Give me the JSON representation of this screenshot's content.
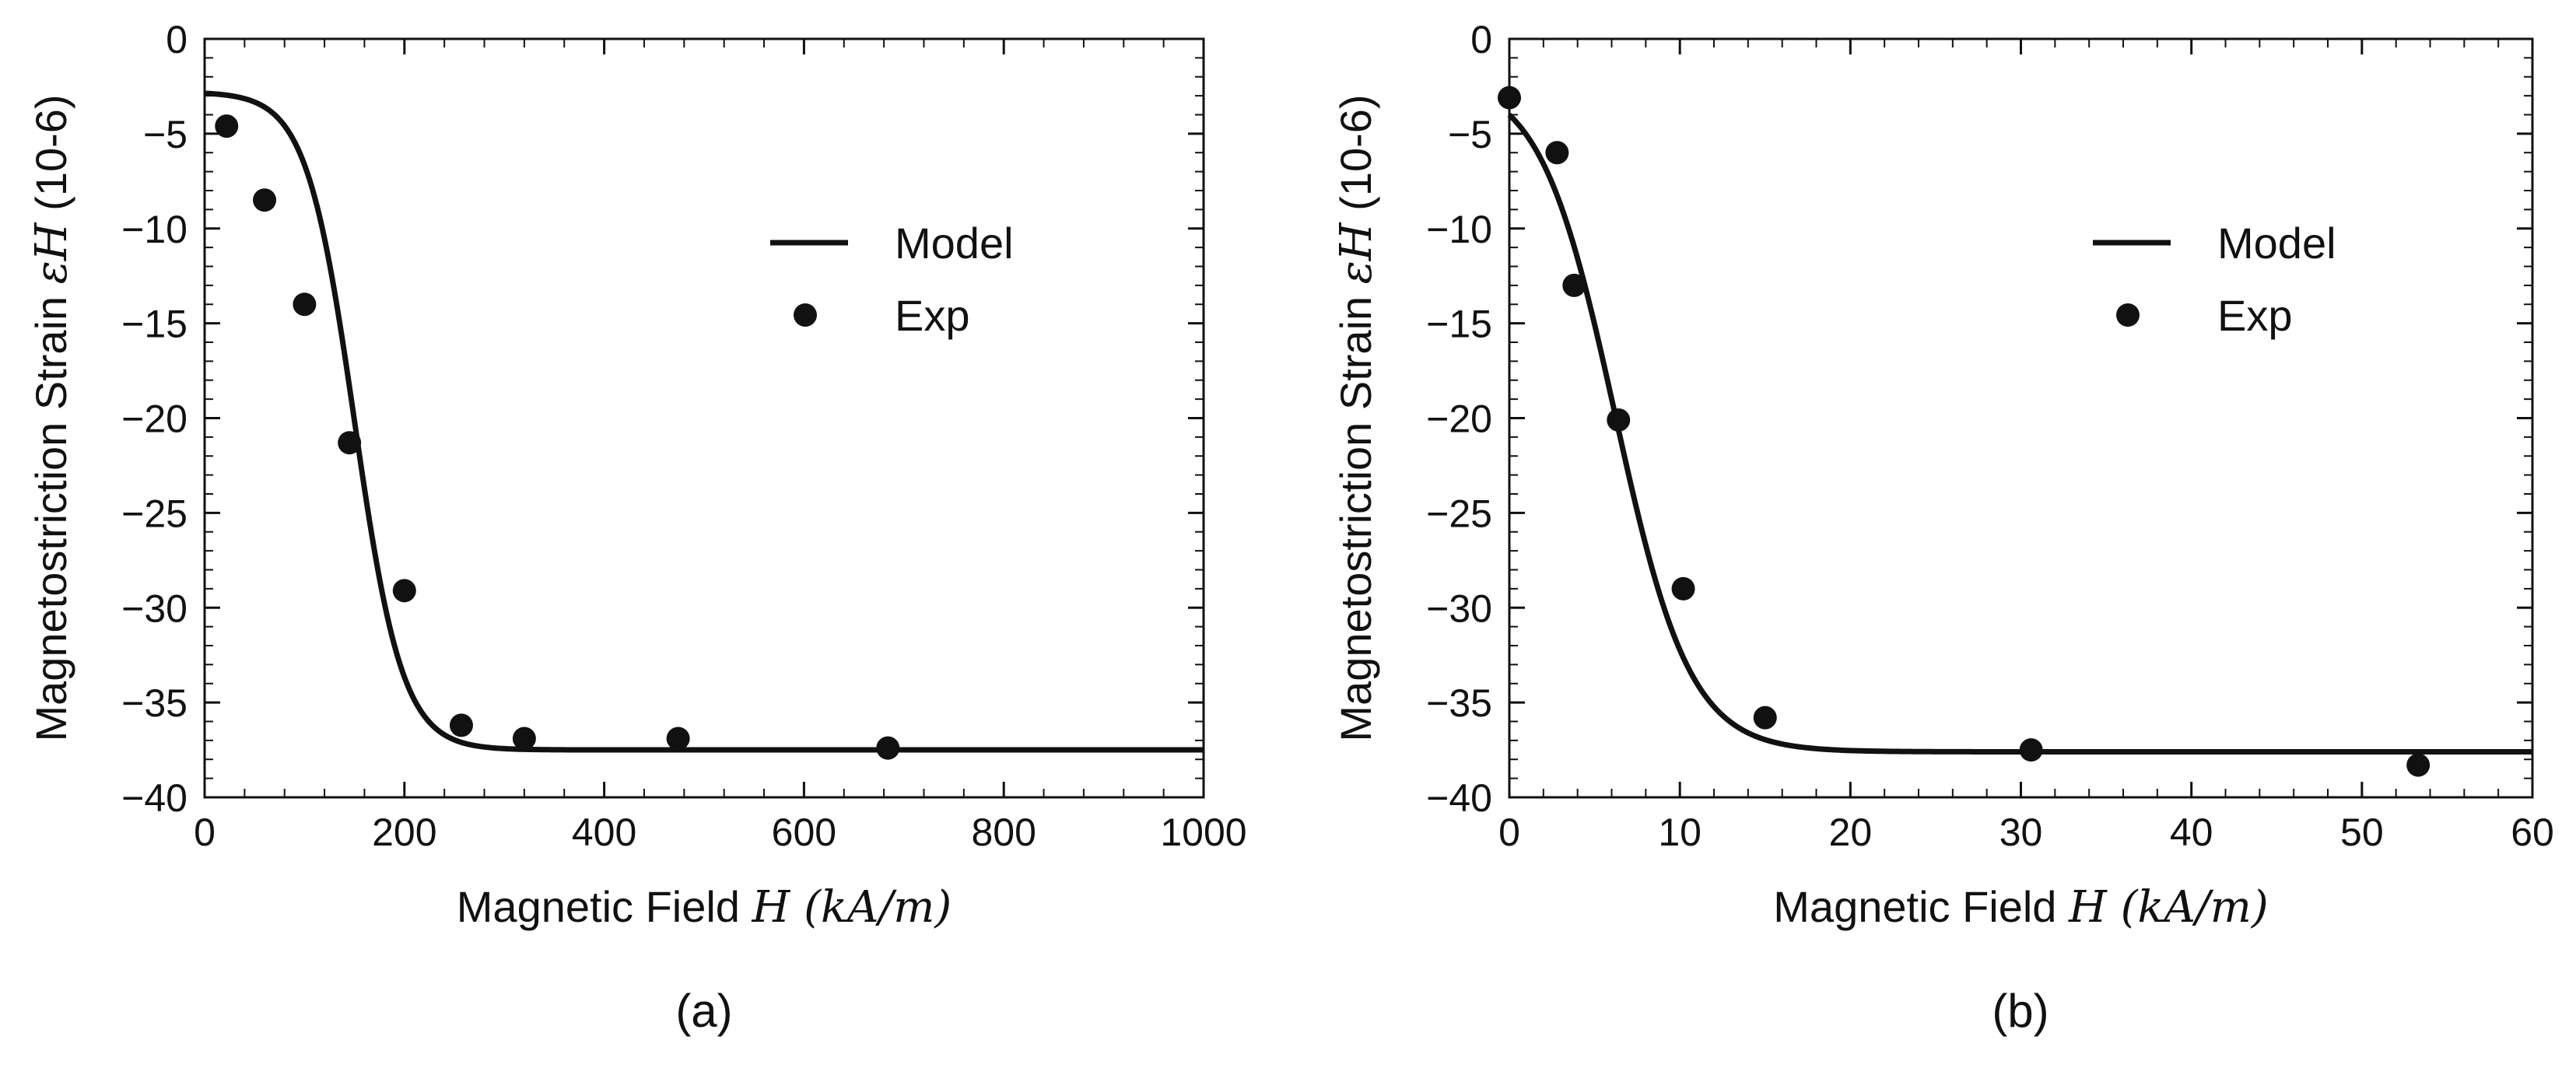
{
  "chart_data": [
    {
      "type": "line+scatter",
      "panel_label": "(a)",
      "xlabel": "Magnetic Field",
      "xlabel_var": "H",
      "xlabel_unit": "(kA/m)",
      "ylabel": "Magnetostriction Strain",
      "ylabel_var": "εH",
      "ylabel_unit": "(10-6)",
      "xlim": [
        0,
        1000
      ],
      "ylim": [
        -40,
        0
      ],
      "xticks": [
        "0",
        "200",
        "400",
        "600",
        "800",
        "1000"
      ],
      "yticks": [
        "0",
        "−5",
        "−10",
        "−15",
        "−20",
        "−25",
        "−30",
        "−35",
        "−40"
      ],
      "legend": [
        {
          "name": "Model",
          "marker": "line"
        },
        {
          "name": "Exp",
          "marker": "dot"
        }
      ],
      "legend_position": "upper-right",
      "series": [
        {
          "name": "Model",
          "style": "line",
          "model": {
            "a": -2.8,
            "b": -37.5,
            "mid": 150,
            "width": 24
          },
          "x": [
            0,
            100,
            150,
            200,
            300,
            1000
          ],
          "values": [
            -2.8,
            -8.5,
            -20.2,
            -32,
            -37.5,
            -37.5
          ]
        },
        {
          "name": "Exp",
          "style": "scatter",
          "x": [
            22,
            60,
            100,
            145,
            200,
            257,
            320,
            474,
            684
          ],
          "values": [
            -4.6,
            -8.5,
            -14.0,
            -21.3,
            -29.1,
            -36.2,
            -36.9,
            -36.9,
            -37.4
          ]
        }
      ]
    },
    {
      "type": "line+scatter",
      "panel_label": "(b)",
      "xlabel": "Magnetic Field",
      "xlabel_var": "H",
      "xlabel_unit": "(kA/m)",
      "ylabel": "Magnetostriction Strain",
      "ylabel_var": "εH",
      "ylabel_unit": "(10-6)",
      "xlim": [
        0,
        60
      ],
      "ylim": [
        -40,
        0
      ],
      "xticks": [
        "0",
        "10",
        "20",
        "30",
        "40",
        "50",
        "60"
      ],
      "yticks": [
        "0",
        "−5",
        "−10",
        "−15",
        "−20",
        "−25",
        "−30",
        "−35",
        "−40"
      ],
      "legend": [
        {
          "name": "Model",
          "marker": "line"
        },
        {
          "name": "Exp",
          "marker": "dot"
        }
      ],
      "legend_position": "upper-right",
      "series": [
        {
          "name": "Model",
          "style": "line",
          "model": {
            "a": -2.0,
            "b": -37.6,
            "mid": 6.2,
            "width": 2.2
          },
          "x": [
            0,
            6.2,
            10,
            20,
            60
          ],
          "values": [
            -3.2,
            -19.8,
            -30.8,
            -37.5,
            -37.6
          ]
        },
        {
          "name": "Exp",
          "style": "scatter",
          "x": [
            0,
            2.8,
            3.8,
            6.4,
            10.2,
            15.0,
            30.6,
            53.3
          ],
          "values": [
            -3.1,
            -6.0,
            -13.0,
            -20.1,
            -29.0,
            -35.8,
            -37.5,
            -38.3
          ]
        }
      ]
    }
  ]
}
